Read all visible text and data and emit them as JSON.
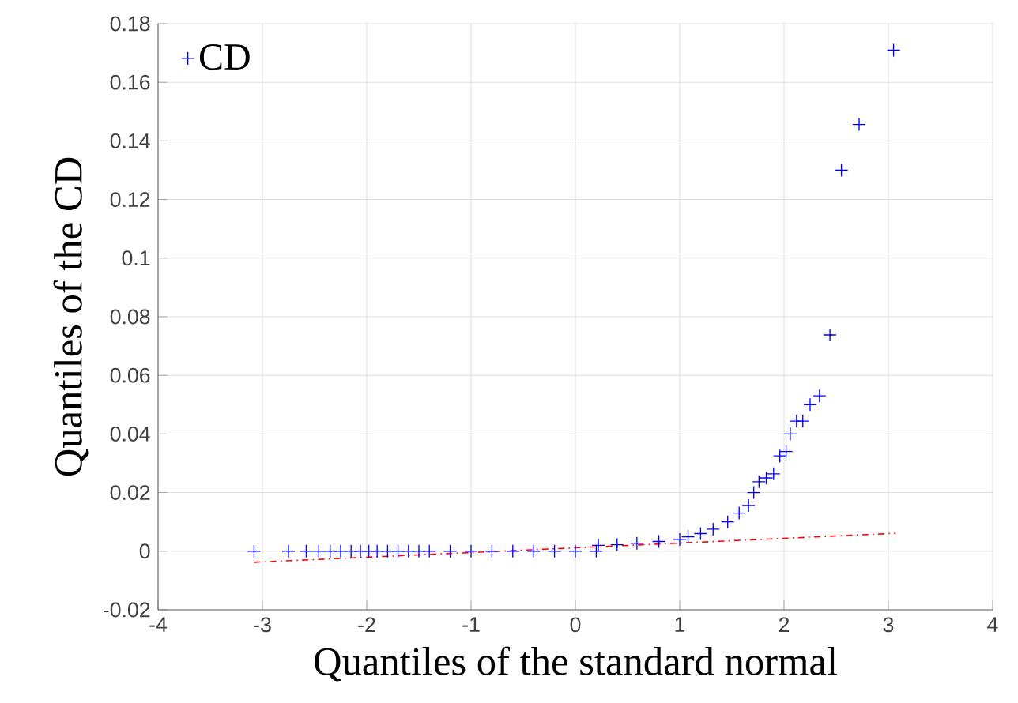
{
  "chart_data": {
    "type": "scatter",
    "xlabel": "Quantiles of the standard normal",
    "ylabel": "Quantiles of the CD",
    "xlim": [
      -4,
      4
    ],
    "ylim": [
      -0.02,
      0.18
    ],
    "xticks": [
      -4,
      -3,
      -2,
      -1,
      0,
      1,
      2,
      3,
      4
    ],
    "yticks": [
      -0.02,
      0,
      0.02,
      0.04,
      0.06,
      0.08,
      0.1,
      0.12,
      0.14,
      0.16,
      0.18
    ],
    "grid": true,
    "legend": "top left",
    "series": [
      {
        "name": "CD",
        "color": "#0000ff",
        "marker": "cross",
        "x": [
          -3.08,
          -2.75,
          -2.58,
          -2.46,
          -2.35,
          -2.25,
          -2.15,
          -2.06,
          -1.98,
          -1.9,
          -1.8,
          -1.7,
          -1.6,
          -1.5,
          -1.4,
          -1.2,
          -1.0,
          -0.8,
          -0.6,
          -0.4,
          -0.2,
          0,
          0.2,
          0.22,
          0.4,
          0.59,
          0.8,
          1.0,
          1.08,
          1.2,
          1.32,
          1.46,
          1.57,
          1.66,
          1.71,
          1.76,
          1.83,
          1.9,
          1.96,
          2.02,
          2.06,
          2.12,
          2.18,
          2.25,
          2.34,
          2.44,
          2.55,
          2.72,
          3.05
        ],
        "values": [
          0,
          0,
          0,
          0,
          0,
          0,
          0,
          0,
          0,
          0,
          0,
          0,
          0,
          0,
          0,
          0,
          0,
          0,
          0,
          0,
          0,
          0,
          0,
          0.002,
          0.0022,
          0.0027,
          0.0033,
          0.004,
          0.0049,
          0.006,
          0.0075,
          0.01,
          0.013,
          0.0156,
          0.02,
          0.0237,
          0.025,
          0.0264,
          0.0325,
          0.034,
          0.04,
          0.0444,
          0.0444,
          0.05,
          0.053,
          0.0738,
          0.13,
          0.1456,
          0.171
        ]
      },
      {
        "type": "line",
        "color": "#ff0000",
        "line_style": "dashed",
        "x": [
          -3.08,
          3.07
        ],
        "values": [
          -0.0038,
          0.0061
        ]
      }
    ]
  }
}
